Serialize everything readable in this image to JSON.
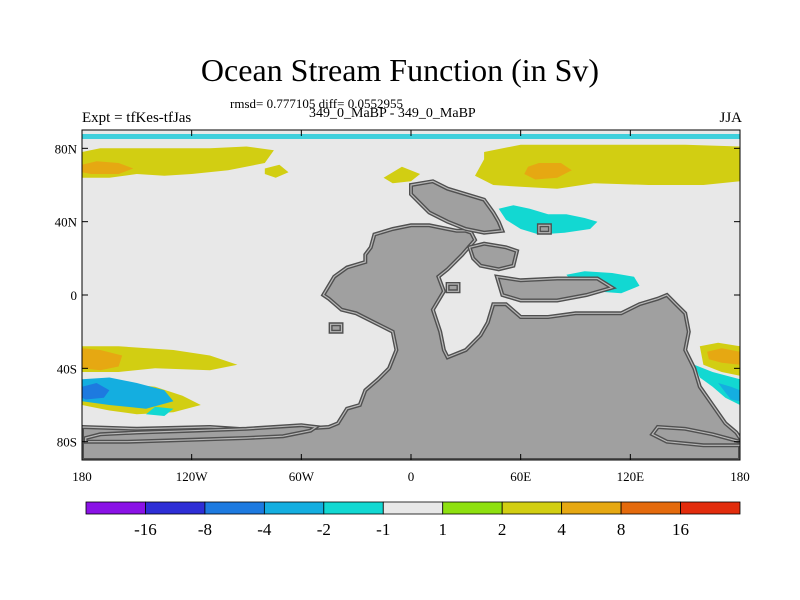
{
  "chart_data": {
    "type": "heatmap",
    "title": "Ocean Stream Function (in Sv)",
    "stats": "rmsd= 0.777105 diff= 0.0552955",
    "subtitle": "349_0_MaBP - 349_0_MaBP",
    "left_label": "Expt = tfKes-tfJas",
    "right_label": "JJA",
    "xlim": [
      -180,
      180
    ],
    "ylim": [
      -90,
      90
    ],
    "x_ticks": [
      {
        "value": -180,
        "label": "180"
      },
      {
        "value": -120,
        "label": "120W"
      },
      {
        "value": -60,
        "label": "60W"
      },
      {
        "value": 0,
        "label": "0"
      },
      {
        "value": 60,
        "label": "60E"
      },
      {
        "value": 120,
        "label": "120E"
      },
      {
        "value": 180,
        "label": "180"
      }
    ],
    "y_ticks": [
      {
        "value": 80,
        "label": "80N"
      },
      {
        "value": 40,
        "label": "40N"
      },
      {
        "value": 0,
        "label": "0"
      },
      {
        "value": -40,
        "label": "40S"
      },
      {
        "value": -80,
        "label": "80S"
      }
    ],
    "colorbar": {
      "labels": [
        "-16",
        "-8",
        "-4",
        "-2",
        "-1",
        "1",
        "2",
        "4",
        "8",
        "16"
      ],
      "colors": [
        "#8a12e6",
        "#2e2ed6",
        "#1d7ae0",
        "#14aee0",
        "#12d8d2",
        "#e8e8e8",
        "#8ee010",
        "#d2ce12",
        "#e6a812",
        "#e46a0c",
        "#e22c0c"
      ]
    },
    "land_color": "#a0a0a0",
    "ocean_color": "#e8e8e8",
    "regions": [
      {
        "level": "2",
        "points": [
          [
            -180,
            78
          ],
          [
            -170,
            80
          ],
          [
            -140,
            80
          ],
          [
            -110,
            80
          ],
          [
            -90,
            81
          ],
          [
            -75,
            79
          ],
          [
            -80,
            72
          ],
          [
            -100,
            68
          ],
          [
            -120,
            66
          ],
          [
            -135,
            65
          ],
          [
            -150,
            66
          ],
          [
            -165,
            64
          ],
          [
            -180,
            64
          ]
        ]
      },
      {
        "level": "4",
        "points": [
          [
            -180,
            71
          ],
          [
            -172,
            73
          ],
          [
            -160,
            72
          ],
          [
            -152,
            69
          ],
          [
            -160,
            66
          ],
          [
            -175,
            66
          ],
          [
            -180,
            67
          ]
        ]
      },
      {
        "level": "2",
        "points": [
          [
            -80,
            69
          ],
          [
            -72,
            71
          ],
          [
            -67,
            67
          ],
          [
            -74,
            64
          ],
          [
            -80,
            66
          ]
        ]
      },
      {
        "level": "2",
        "points": [
          [
            -15,
            64
          ],
          [
            -5,
            70
          ],
          [
            5,
            66
          ],
          [
            0,
            62
          ],
          [
            -10,
            61
          ]
        ]
      },
      {
        "level": "2",
        "points": [
          [
            40,
            78
          ],
          [
            60,
            82
          ],
          [
            100,
            82
          ],
          [
            150,
            82
          ],
          [
            180,
            81
          ],
          [
            180,
            62
          ],
          [
            160,
            60
          ],
          [
            130,
            60
          ],
          [
            100,
            61
          ],
          [
            80,
            58
          ],
          [
            60,
            59
          ],
          [
            45,
            60
          ],
          [
            35,
            65
          ],
          [
            40,
            74
          ]
        ]
      },
      {
        "level": "4",
        "points": [
          [
            64,
            70
          ],
          [
            70,
            72
          ],
          [
            82,
            72
          ],
          [
            88,
            68
          ],
          [
            80,
            64
          ],
          [
            68,
            63
          ],
          [
            62,
            66
          ]
        ]
      },
      {
        "level": "-1",
        "points": [
          [
            48,
            47
          ],
          [
            56,
            49
          ],
          [
            65,
            47
          ],
          [
            75,
            44
          ],
          [
            85,
            44
          ],
          [
            95,
            42
          ],
          [
            102,
            40
          ],
          [
            98,
            36
          ],
          [
            84,
            34
          ],
          [
            70,
            33
          ],
          [
            60,
            36
          ],
          [
            52,
            41
          ]
        ]
      },
      {
        "level": "-1",
        "points": [
          [
            85,
            11
          ],
          [
            95,
            13
          ],
          [
            110,
            12
          ],
          [
            122,
            10
          ],
          [
            125,
            5
          ],
          [
            115,
            1
          ],
          [
            100,
            2
          ],
          [
            90,
            5
          ]
        ]
      },
      {
        "level": "2",
        "points": [
          [
            -180,
            -28
          ],
          [
            -160,
            -28
          ],
          [
            -130,
            -30
          ],
          [
            -110,
            -33
          ],
          [
            -95,
            -38
          ],
          [
            -110,
            -41
          ],
          [
            -140,
            -40
          ],
          [
            -160,
            -42
          ],
          [
            -180,
            -42
          ]
        ]
      },
      {
        "level": "4",
        "points": [
          [
            -180,
            -29
          ],
          [
            -170,
            -30
          ],
          [
            -158,
            -33
          ],
          [
            -160,
            -39
          ],
          [
            -170,
            -41
          ],
          [
            -180,
            -40
          ]
        ]
      },
      {
        "level": "2",
        "points": [
          [
            -180,
            -52
          ],
          [
            -160,
            -48
          ],
          [
            -140,
            -50
          ],
          [
            -125,
            -55
          ],
          [
            -115,
            -60
          ],
          [
            -130,
            -64
          ],
          [
            -150,
            -65
          ],
          [
            -165,
            -63
          ],
          [
            -180,
            -60
          ]
        ]
      },
      {
        "level": "-2",
        "points": [
          [
            -180,
            -46
          ],
          [
            -165,
            -45
          ],
          [
            -150,
            -48
          ],
          [
            -135,
            -52
          ],
          [
            -130,
            -58
          ],
          [
            -145,
            -62
          ],
          [
            -165,
            -60
          ],
          [
            -180,
            -58
          ]
        ]
      },
      {
        "level": "-4",
        "points": [
          [
            -180,
            -50
          ],
          [
            -172,
            -48
          ],
          [
            -165,
            -52
          ],
          [
            -168,
            -56
          ],
          [
            -178,
            -57
          ],
          [
            -180,
            -56
          ]
        ]
      },
      {
        "level": "-1",
        "points": [
          [
            -140,
            -61
          ],
          [
            -130,
            -62
          ],
          [
            -135,
            -66
          ],
          [
            -145,
            -65
          ]
        ]
      },
      {
        "level": "2",
        "points": [
          [
            158,
            -28
          ],
          [
            168,
            -26
          ],
          [
            180,
            -28
          ],
          [
            180,
            -44
          ],
          [
            170,
            -42
          ],
          [
            160,
            -38
          ]
        ]
      },
      {
        "level": "4",
        "points": [
          [
            162,
            -31
          ],
          [
            170,
            -29
          ],
          [
            180,
            -31
          ],
          [
            180,
            -38
          ],
          [
            170,
            -37
          ],
          [
            163,
            -35
          ]
        ]
      },
      {
        "level": "-1",
        "points": [
          [
            155,
            -38
          ],
          [
            165,
            -42
          ],
          [
            180,
            -46
          ],
          [
            180,
            -60
          ],
          [
            172,
            -56
          ],
          [
            165,
            -50
          ],
          [
            158,
            -45
          ]
        ]
      },
      {
        "level": "-2",
        "points": [
          [
            168,
            -48
          ],
          [
            175,
            -50
          ],
          [
            180,
            -52
          ],
          [
            180,
            -58
          ],
          [
            175,
            -57
          ]
        ]
      }
    ],
    "land": [
      {
        "points": [
          [
            -40,
            -70
          ],
          [
            -35,
            -62
          ],
          [
            -28,
            -60
          ],
          [
            -25,
            -52
          ],
          [
            -18,
            -46
          ],
          [
            -12,
            -40
          ],
          [
            -8,
            -30
          ],
          [
            -10,
            -20
          ],
          [
            -20,
            -15
          ],
          [
            -30,
            -10
          ],
          [
            -38,
            -8
          ],
          [
            -45,
            -2
          ],
          [
            -48,
            0
          ],
          [
            -45,
            5
          ],
          [
            -42,
            10
          ],
          [
            -35,
            15
          ],
          [
            -25,
            18
          ],
          [
            -25,
            22
          ],
          [
            -22,
            26
          ],
          [
            -20,
            33
          ],
          [
            -10,
            36
          ],
          [
            0,
            38
          ],
          [
            10,
            38
          ],
          [
            20,
            36
          ],
          [
            25,
            35
          ],
          [
            30,
            35
          ],
          [
            33,
            34
          ],
          [
            35,
            30
          ],
          [
            28,
            22
          ],
          [
            20,
            14
          ],
          [
            15,
            10
          ],
          [
            18,
            2
          ],
          [
            12,
            -8
          ],
          [
            16,
            -20
          ],
          [
            18,
            -30
          ],
          [
            20,
            -34
          ],
          [
            30,
            -30
          ],
          [
            38,
            -22
          ],
          [
            42,
            -15
          ],
          [
            45,
            -5
          ],
          [
            52,
            -5
          ],
          [
            60,
            -12
          ],
          [
            75,
            -12
          ],
          [
            90,
            -10
          ],
          [
            105,
            -10
          ],
          [
            115,
            -10
          ],
          [
            125,
            -5
          ],
          [
            135,
            -2
          ],
          [
            140,
            0
          ],
          [
            145,
            -5
          ],
          [
            150,
            -10
          ],
          [
            152,
            -20
          ],
          [
            150,
            -30
          ],
          [
            155,
            -40
          ],
          [
            158,
            -50
          ],
          [
            165,
            -60
          ],
          [
            172,
            -70
          ],
          [
            178,
            -75
          ],
          [
            180,
            -78
          ],
          [
            180,
            -90
          ],
          [
            -180,
            -90
          ],
          [
            -180,
            -72
          ],
          [
            -150,
            -73
          ],
          [
            -110,
            -72
          ],
          [
            -80,
            -74
          ],
          [
            -60,
            -73
          ],
          [
            -45,
            -72
          ]
        ]
      },
      {
        "points": [
          [
            -178,
            -80
          ],
          [
            -155,
            -80
          ],
          [
            -120,
            -79
          ],
          [
            -90,
            -78
          ],
          [
            -70,
            -77
          ],
          [
            -55,
            -74
          ],
          [
            -52,
            -72
          ],
          [
            -60,
            -71
          ],
          [
            -90,
            -73
          ],
          [
            -120,
            -74
          ],
          [
            -150,
            -75
          ],
          [
            -170,
            -76
          ],
          [
            -178,
            -78
          ]
        ]
      },
      {
        "points": [
          [
            0,
            60
          ],
          [
            12,
            62
          ],
          [
            20,
            58
          ],
          [
            30,
            55
          ],
          [
            40,
            52
          ],
          [
            45,
            45
          ],
          [
            48,
            40
          ],
          [
            50,
            35
          ],
          [
            40,
            34
          ],
          [
            30,
            36
          ],
          [
            20,
            40
          ],
          [
            10,
            45
          ],
          [
            5,
            50
          ],
          [
            0,
            55
          ]
        ]
      },
      {
        "points": [
          [
            32,
            26
          ],
          [
            40,
            28
          ],
          [
            52,
            26
          ],
          [
            58,
            24
          ],
          [
            56,
            16
          ],
          [
            48,
            14
          ],
          [
            38,
            16
          ],
          [
            34,
            20
          ]
        ]
      },
      {
        "points": [
          [
            47,
            10
          ],
          [
            60,
            8
          ],
          [
            80,
            9
          ],
          [
            102,
            9
          ],
          [
            110,
            4
          ],
          [
            96,
            0
          ],
          [
            80,
            -3
          ],
          [
            60,
            -3
          ],
          [
            50,
            0
          ]
        ]
      },
      {
        "points": [
          [
            70,
            38
          ],
          [
            76,
            38
          ],
          [
            76,
            34
          ],
          [
            70,
            34
          ]
        ]
      },
      {
        "points": [
          [
            135,
            -72
          ],
          [
            150,
            -73
          ],
          [
            165,
            -76
          ],
          [
            180,
            -80
          ],
          [
            180,
            -82
          ],
          [
            160,
            -82
          ],
          [
            140,
            -80
          ],
          [
            132,
            -76
          ]
        ]
      },
      {
        "points": [
          [
            -44,
            -16
          ],
          [
            -38,
            -16
          ],
          [
            -38,
            -20
          ],
          [
            -44,
            -20
          ]
        ]
      },
      {
        "points": [
          [
            20,
            6
          ],
          [
            26,
            6
          ],
          [
            26,
            2
          ],
          [
            20,
            2
          ]
        ]
      }
    ]
  }
}
